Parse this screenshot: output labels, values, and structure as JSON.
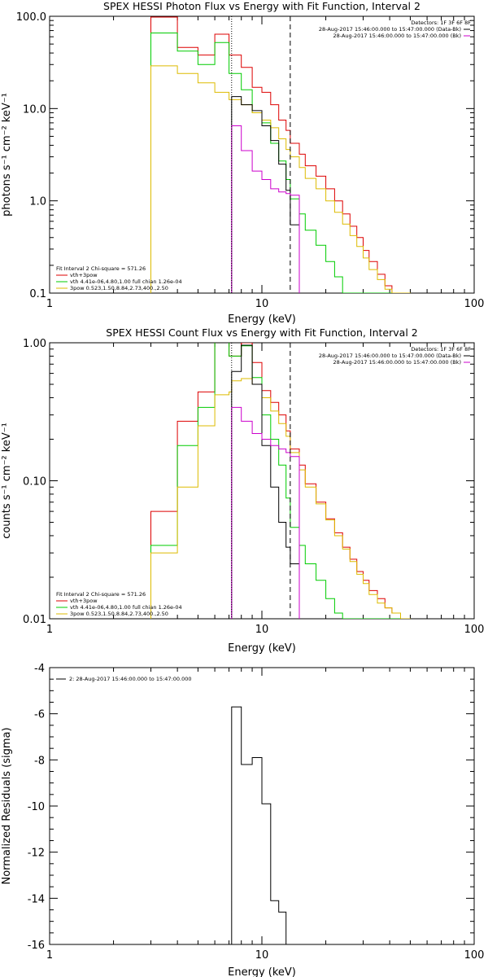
{
  "chart_data": [
    {
      "type": "line",
      "title": "SPEX HESSI Photon Flux vs Energy with Fit Function, Interval 2",
      "xlabel": "Energy (keV)",
      "ylabel": "photons s⁻¹ cm⁻² keV⁻¹",
      "xscale": "log",
      "yscale": "log",
      "xlim": [
        1,
        100
      ],
      "ylim": [
        0.1,
        100
      ],
      "xticks": [
        "1",
        "10",
        "100"
      ],
      "yticks": [
        "0.1",
        "1.0",
        "10.0",
        "100.0"
      ],
      "vlines": [
        {
          "x": 7.2,
          "style": "dotted",
          "color": "#000000"
        },
        {
          "x": 13.6,
          "style": "dashed",
          "color": "#000000"
        }
      ],
      "legend_topright": {
        "detectors": "Detectors: 1F 3F 6F 8F",
        "lines": [
          {
            "text": "28-Aug-2017 15:46:00.000 to 15:47:00.000 (Data-Bk)",
            "color": "#000000"
          },
          {
            "text": "28-Aug-2017 15:46:00.000 to 15:47:00.000 (Bk)",
            "color": "#cc00cc"
          }
        ]
      },
      "legend_bottomleft": {
        "header": "Fit Interval 2   Chi-square = 571.26",
        "lines": [
          {
            "text": "vth+3pow",
            "color": "#dd0000"
          },
          {
            "text": "vth 4.41e-06,4.80,1.00  full chian 1.26e-04",
            "color": "#00cc00"
          },
          {
            "text": "3pow 0.523,1.50,8.84,2.73,400.,2.50",
            "color": "#ddbb00"
          }
        ]
      },
      "bin_edges": [
        3,
        4,
        5,
        6,
        7,
        7.2,
        8,
        9,
        10,
        11,
        12,
        13,
        13.6,
        15,
        16,
        18,
        20,
        22,
        24,
        26,
        28,
        30,
        32,
        35,
        38,
        41,
        45,
        50
      ],
      "series": [
        {
          "name": "vth+3pow",
          "color": "#dd0000",
          "values": [
            98,
            46,
            38,
            64,
            38,
            38,
            28,
            17,
            15,
            11,
            7.5,
            5.8,
            4.2,
            3.2,
            2.4,
            1.85,
            1.35,
            1.0,
            0.72,
            0.53,
            0.4,
            0.29,
            0.22,
            0.16,
            0.12,
            0.1,
            0.1
          ]
        },
        {
          "name": "vth",
          "color": "#00cc00",
          "values": [
            66,
            42,
            30,
            52,
            24,
            24,
            16,
            9,
            7,
            4.2,
            2.7,
            1.7,
            1.05,
            0.72,
            0.48,
            0.33,
            0.22,
            0.15,
            0.1,
            0.1,
            0.1,
            0.1,
            0.1,
            0.1,
            0.1,
            0.1,
            0.1
          ]
        },
        {
          "name": "3pow",
          "color": "#ddbb00",
          "values": [
            29,
            24,
            19,
            15,
            12.5,
            12.5,
            11,
            9,
            7.5,
            6.2,
            4.7,
            3.6,
            3.0,
            2.3,
            1.75,
            1.35,
            1.0,
            0.75,
            0.56,
            0.42,
            0.32,
            0.24,
            0.18,
            0.14,
            0.11,
            0.1,
            0.1
          ]
        },
        {
          "name": "Data-Bk",
          "color": "#000000",
          "values": [
            null,
            null,
            null,
            null,
            null,
            13.5,
            11,
            9.5,
            6.5,
            4.5,
            2.5,
            1.3,
            0.55,
            null,
            null,
            null,
            null,
            null,
            null,
            null,
            null,
            null,
            null,
            null,
            null,
            null,
            null
          ]
        },
        {
          "name": "Bk",
          "color": "#cc00cc",
          "values": [
            null,
            null,
            null,
            null,
            null,
            6.5,
            3.5,
            2.1,
            1.7,
            1.35,
            1.25,
            1.2,
            1.15,
            null,
            null,
            null,
            null,
            null,
            null,
            null,
            null,
            null,
            null,
            null,
            null,
            null,
            null
          ]
        }
      ]
    },
    {
      "type": "line",
      "title": "SPEX HESSI Count Flux vs Energy with Fit Function, Interval 2",
      "xlabel": "Energy (keV)",
      "ylabel": "counts s⁻¹ cm⁻² keV⁻¹",
      "xscale": "log",
      "yscale": "log",
      "xlim": [
        1,
        100
      ],
      "ylim": [
        0.01,
        1
      ],
      "xticks": [
        "1",
        "10",
        "100"
      ],
      "yticks": [
        "0.01",
        "0.10",
        "1.00"
      ],
      "vlines": [
        {
          "x": 7.2,
          "style": "dotted",
          "color": "#000000"
        },
        {
          "x": 13.6,
          "style": "dashed",
          "color": "#000000"
        }
      ],
      "legend_topright": {
        "detectors": "Detectors: 1F 3F 6F 8F",
        "lines": [
          {
            "text": "28-Aug-2017 15:46:00.000 to 15:47:00.000 (Data-Bk)",
            "color": "#000000"
          },
          {
            "text": "28-Aug-2017 15:46:00.000 to 15:47:00.000 (Bk)",
            "color": "#cc00cc"
          }
        ]
      },
      "legend_bottomleft": {
        "header": "Fit Interval 2   Chi-square = 571.26",
        "lines": [
          {
            "text": "vth+3pow",
            "color": "#dd0000"
          },
          {
            "text": "vth 4.41e-06,4.80,1.00  full chian 1.26e-04",
            "color": "#00cc00"
          },
          {
            "text": "3pow 0.523,1.50,8.84,2.73,400.,2.50",
            "color": "#ddbb00"
          }
        ]
      },
      "bin_edges": [
        3,
        4,
        5,
        6,
        7,
        7.2,
        8,
        9,
        10,
        11,
        12,
        13,
        13.6,
        15,
        16,
        18,
        20,
        22,
        24,
        26,
        28,
        30,
        32,
        35,
        38,
        41,
        45,
        50
      ],
      "series": [
        {
          "name": "vth+3pow",
          "color": "#dd0000",
          "values": [
            0.06,
            0.27,
            0.44,
            1.1,
            0.8,
            0.8,
            1.0,
            0.72,
            0.45,
            0.37,
            0.3,
            0.23,
            0.17,
            0.13,
            0.095,
            0.07,
            0.053,
            0.042,
            0.033,
            0.027,
            0.022,
            0.019,
            0.016,
            0.014,
            0.012,
            0.011,
            0.01
          ]
        },
        {
          "name": "vth",
          "color": "#00cc00",
          "values": [
            0.034,
            0.18,
            0.34,
            1.1,
            0.8,
            0.8,
            0.95,
            0.56,
            0.3,
            0.2,
            0.13,
            0.075,
            0.046,
            0.034,
            0.025,
            0.019,
            0.014,
            0.011,
            0.01,
            0.01,
            0.01,
            0.01,
            0.01,
            0.01,
            0.01,
            0.01,
            0.01
          ]
        },
        {
          "name": "3pow",
          "color": "#ddbb00",
          "values": [
            0.03,
            0.09,
            0.25,
            0.42,
            0.44,
            0.53,
            0.55,
            0.5,
            0.4,
            0.32,
            0.26,
            0.21,
            0.16,
            0.12,
            0.09,
            0.068,
            0.052,
            0.04,
            0.032,
            0.026,
            0.021,
            0.018,
            0.015,
            0.013,
            0.012,
            0.011,
            0.01
          ]
        },
        {
          "name": "Data-Bk",
          "color": "#000000",
          "values": [
            null,
            null,
            null,
            null,
            null,
            0.62,
            0.96,
            0.5,
            0.18,
            0.09,
            0.05,
            0.033,
            0.025,
            null,
            null,
            null,
            null,
            null,
            null,
            null,
            null,
            null,
            null,
            null,
            null,
            null,
            null
          ]
        },
        {
          "name": "Bk",
          "color": "#cc00cc",
          "values": [
            null,
            null,
            null,
            null,
            null,
            0.34,
            0.27,
            0.22,
            0.2,
            0.18,
            0.17,
            0.16,
            0.15,
            null,
            null,
            null,
            null,
            null,
            null,
            null,
            null,
            null,
            null,
            null,
            null,
            null,
            null
          ]
        }
      ]
    },
    {
      "type": "line",
      "title": "",
      "xlabel": "Energy (keV)",
      "ylabel": "Normalized Residuals (sigma)",
      "xscale": "log",
      "yscale": "linear",
      "xlim": [
        1,
        100
      ],
      "ylim": [
        -16,
        -4
      ],
      "xticks": [
        "1",
        "10",
        "100"
      ],
      "yticks": [
        "-16",
        "-14",
        "-12",
        "-10",
        "-8",
        "-6",
        "-4"
      ],
      "legend_topleft": {
        "lines": [
          {
            "text": "2: 28-Aug-2017 15:46:00.000 to 15:47:00.000",
            "color": "#000000"
          }
        ]
      },
      "bin_edges": [
        7.2,
        8,
        9,
        10,
        11,
        12,
        13,
        13.6
      ],
      "series": [
        {
          "name": "2: 28-Aug-2017 15:46:00.000 to 15:47:00.000",
          "color": "#000000",
          "values": [
            -5.7,
            -8.2,
            -7.9,
            -9.9,
            -14.1,
            -14.6,
            -16
          ]
        }
      ]
    }
  ]
}
